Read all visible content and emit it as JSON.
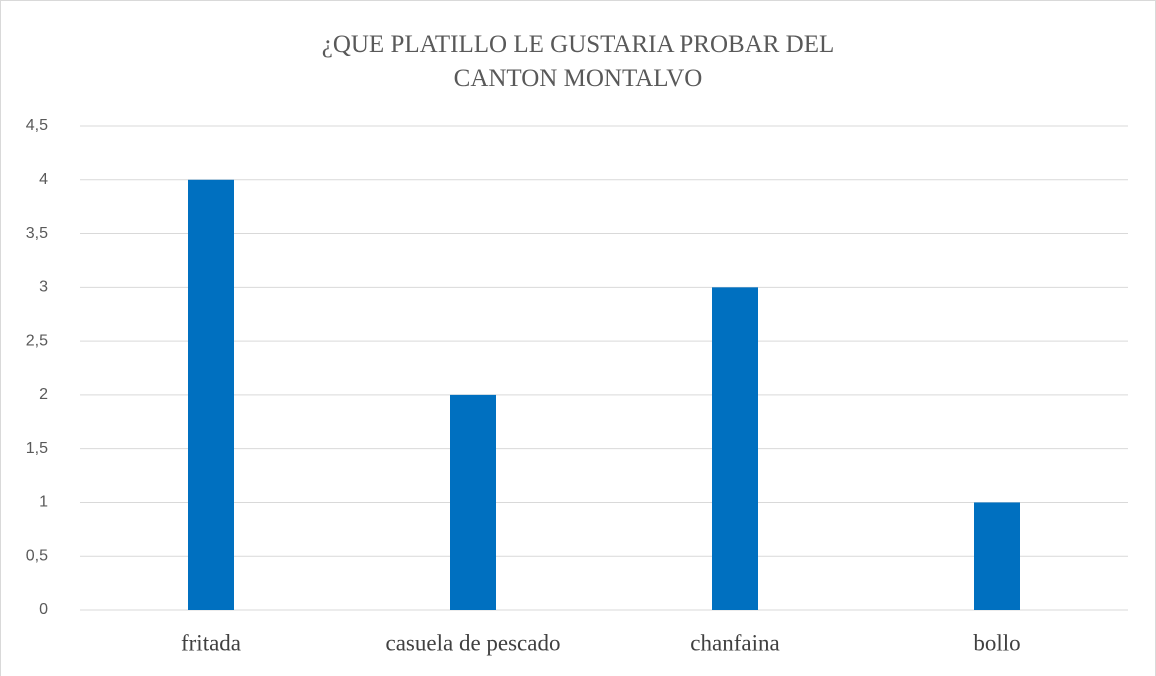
{
  "chart_data": {
    "type": "bar",
    "title": "¿QUE PLATILLO LE GUSTARIA PROBAR DEL CANTON MONTALVO",
    "categories": [
      "fritada",
      "casuela de pescado",
      "chanfaina",
      "bollo"
    ],
    "values": [
      4,
      2,
      3,
      1
    ],
    "color": "#0070c0",
    "ylim": [
      0,
      4.5
    ],
    "yticks": [
      0,
      {
        "value": 0.5,
        "label": "0,5"
      },
      1,
      {
        "value": 1.5,
        "label": "1,5"
      },
      2,
      {
        "value": 2.5,
        "label": "2,5"
      },
      3,
      {
        "value": 3.5,
        "label": "3,5"
      },
      4,
      {
        "value": 4.5,
        "label": "4,5"
      }
    ],
    "grid": true
  }
}
